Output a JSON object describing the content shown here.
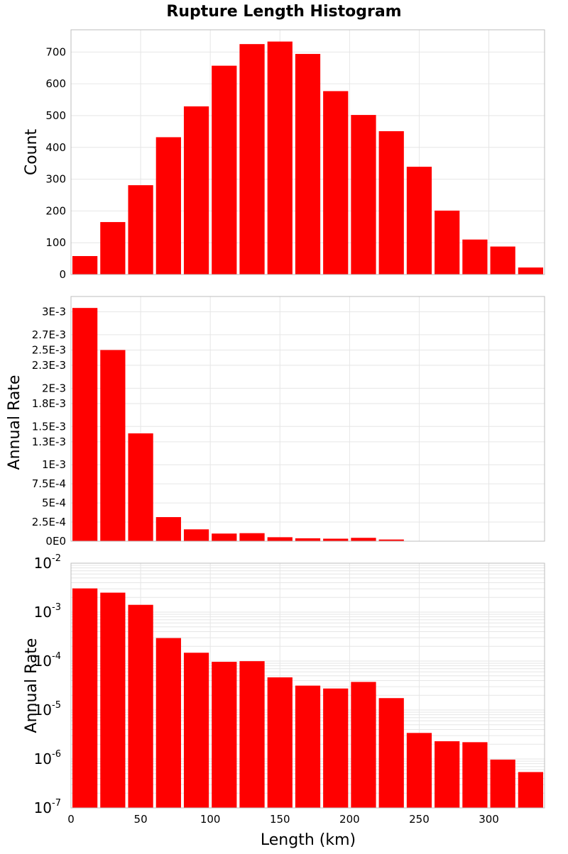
{
  "chart_data": {
    "title": "Rupture Length Histogram",
    "type": "bar",
    "bin_width": 20,
    "x": [
      10,
      30,
      50,
      70,
      90,
      110,
      130,
      150,
      170,
      190,
      210,
      230,
      250,
      270,
      290,
      310,
      330
    ],
    "xlabel": "Length (km)",
    "xlim": [
      0,
      340
    ],
    "xticks": [
      "0",
      "50",
      "100",
      "150",
      "200",
      "250",
      "300"
    ],
    "bar_color": "#ff0000",
    "grid": true,
    "panels": [
      {
        "ylabel": "Count",
        "yscale": "linear",
        "ylim": [
          0,
          770
        ],
        "yticks": [
          "0",
          "100",
          "200",
          "300",
          "400",
          "500",
          "600",
          "700"
        ],
        "values": [
          58,
          165,
          281,
          432,
          529,
          657,
          725,
          733,
          694,
          577,
          502,
          451,
          339,
          201,
          110,
          88,
          22
        ]
      },
      {
        "ylabel": "Annual Rate",
        "yscale": "linear",
        "ylim": [
          0,
          0.0032
        ],
        "yticks": [
          "0E0",
          "2.5E-4",
          "5E-4",
          "7.5E-4",
          "1E-3",
          "1.3E-3",
          "1.5E-3",
          "1.8E-3",
          "2E-3",
          "2.3E-3",
          "2.5E-3",
          "2.7E-3",
          "3E-3"
        ],
        "values": [
          0.00305,
          0.0025,
          0.00141,
          0.000315,
          0.000155,
          0.0001,
          0.000105,
          5.2e-05,
          3.8e-05,
          3.3e-05,
          4.4e-05,
          2.2e-05,
          3.7e-06,
          2.6e-06,
          2.5e-06,
          1e-06,
          6e-07
        ]
      },
      {
        "ylabel": "Annual Rate",
        "yscale": "log",
        "ylim": [
          1e-07,
          0.01
        ],
        "yticks": [
          {
            "base": "10",
            "exp": "-7"
          },
          {
            "base": "10",
            "exp": "-6"
          },
          {
            "base": "10",
            "exp": "-5"
          },
          {
            "base": "10",
            "exp": "-4"
          },
          {
            "base": "10",
            "exp": "-3"
          },
          {
            "base": "10",
            "exp": "-2"
          }
        ],
        "values": [
          0.00305,
          0.0025,
          0.00141,
          0.000295,
          0.000148,
          9.65e-05,
          9.95e-05,
          4.65e-05,
          3.15e-05,
          2.75e-05,
          3.75e-05,
          1.75e-05,
          3.4e-06,
          2.3e-06,
          2.2e-06,
          9.7e-07,
          5.4e-07
        ]
      }
    ]
  }
}
